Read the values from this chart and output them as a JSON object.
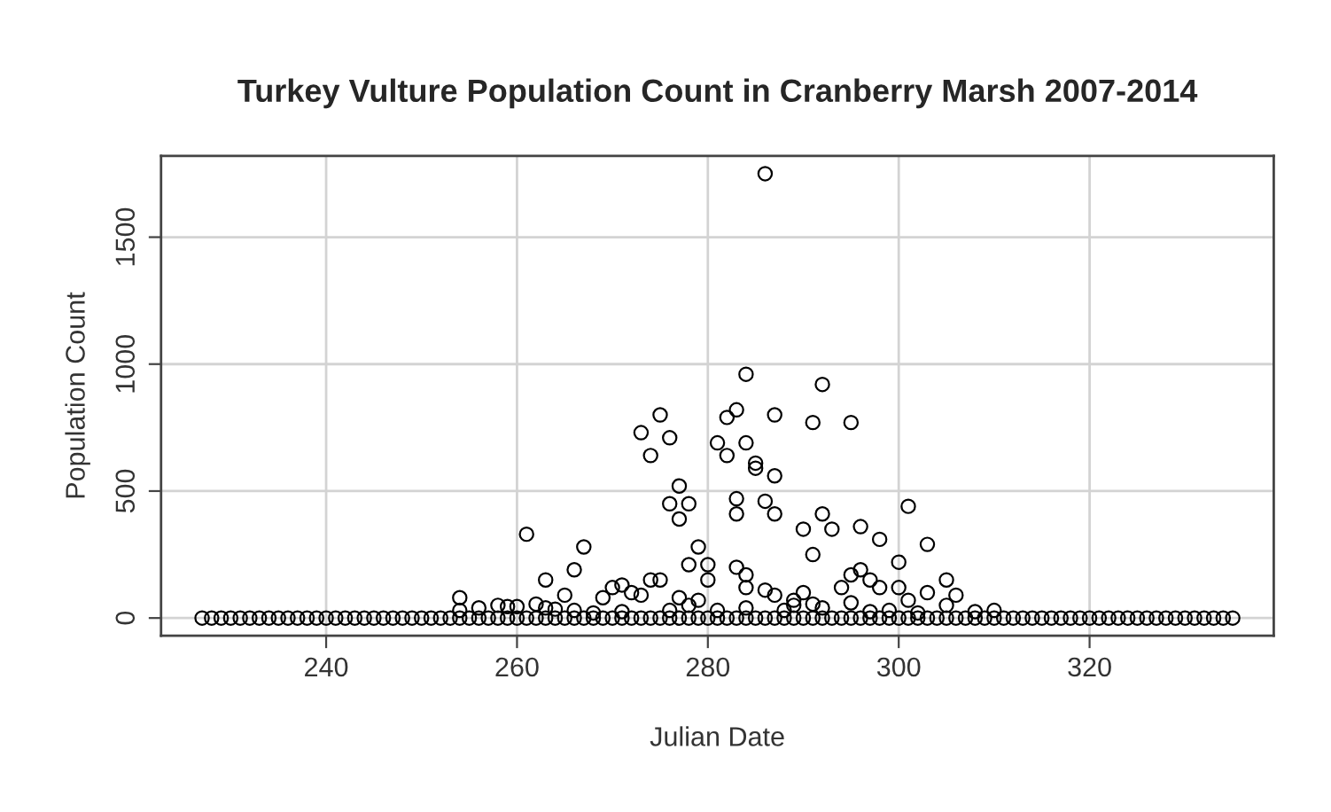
{
  "chart_data": {
    "type": "scatter",
    "title": "Turkey Vulture Population Count in Cranberry Marsh 2007-2014",
    "xlabel": "Julian Date",
    "ylabel": "Population Count",
    "xlim": [
      222.7,
      339.3
    ],
    "xticks": [
      240,
      260,
      280,
      300,
      320
    ],
    "ylim": [
      -70,
      1820
    ],
    "yticks": [
      0,
      500,
      1000,
      1500
    ],
    "grid": true,
    "marker": "circle",
    "series": [
      {
        "color": "#000000",
        "x": [
          227,
          228,
          229,
          230,
          231,
          232,
          233,
          234,
          235,
          236,
          237,
          238,
          239,
          240,
          241,
          242,
          243,
          244,
          245,
          246,
          247,
          248,
          249,
          250,
          251,
          252,
          253,
          254,
          255,
          256,
          257,
          258,
          259,
          260,
          261,
          262,
          263,
          264,
          265,
          266,
          267,
          268,
          269,
          270,
          271,
          272,
          273,
          274,
          275,
          276,
          277,
          278,
          279,
          280,
          281,
          282,
          283,
          284,
          285,
          286,
          287,
          288,
          289,
          290,
          291,
          292,
          293,
          294,
          295,
          296,
          297,
          298,
          299,
          300,
          301,
          302,
          303,
          304,
          305,
          306,
          307,
          308,
          309,
          310,
          311,
          312,
          313,
          314,
          315,
          316,
          317,
          318,
          319,
          320,
          321,
          322,
          323,
          324,
          325,
          326,
          327,
          328,
          329,
          330,
          331,
          332,
          333,
          334,
          335,
          286,
          284,
          292,
          273,
          275,
          276,
          274,
          282,
          283,
          287,
          291,
          295,
          281,
          282,
          284,
          285,
          285,
          287,
          277,
          276,
          278,
          277,
          283,
          283,
          286,
          287,
          292,
          290,
          293,
          296,
          298,
          301,
          303,
          291,
          261,
          267,
          263,
          266,
          265,
          279,
          278,
          280,
          280,
          283,
          284,
          284,
          274,
          275,
          272,
          271,
          270,
          269,
          273,
          300,
          296,
          295,
          297,
          294,
          298,
          300,
          305,
          306,
          303,
          301,
          305,
          286,
          287,
          290,
          289,
          295,
          254,
          277,
          278,
          279,
          254,
          256,
          258,
          259,
          260,
          262,
          263,
          264,
          266,
          268,
          271,
          276,
          281,
          284,
          288,
          289,
          291,
          292,
          297,
          299,
          302,
          308,
          310
        ],
        "values": [
          0,
          0,
          0,
          0,
          0,
          0,
          0,
          0,
          0,
          0,
          0,
          0,
          0,
          0,
          0,
          0,
          0,
          0,
          0,
          0,
          0,
          0,
          0,
          0,
          0,
          0,
          0,
          0,
          0,
          0,
          0,
          0,
          0,
          0,
          0,
          0,
          0,
          0,
          0,
          0,
          0,
          0,
          0,
          0,
          0,
          0,
          0,
          0,
          0,
          0,
          0,
          0,
          0,
          0,
          0,
          0,
          0,
          0,
          0,
          0,
          0,
          0,
          0,
          0,
          0,
          0,
          0,
          0,
          0,
          0,
          0,
          0,
          0,
          0,
          0,
          0,
          0,
          0,
          0,
          0,
          0,
          0,
          0,
          0,
          0,
          0,
          0,
          0,
          0,
          0,
          0,
          0,
          0,
          0,
          0,
          0,
          0,
          0,
          0,
          0,
          0,
          0,
          0,
          0,
          0,
          0,
          0,
          0,
          0,
          1750,
          960,
          920,
          730,
          800,
          710,
          640,
          790,
          820,
          800,
          770,
          770,
          690,
          640,
          690,
          610,
          590,
          560,
          520,
          450,
          450,
          390,
          470,
          410,
          460,
          410,
          410,
          350,
          350,
          360,
          310,
          440,
          290,
          250,
          330,
          280,
          150,
          190,
          90,
          280,
          210,
          210,
          150,
          200,
          170,
          120,
          150,
          150,
          100,
          130,
          120,
          80,
          90,
          220,
          190,
          170,
          150,
          120,
          120,
          120,
          150,
          90,
          100,
          70,
          50,
          110,
          90,
          100,
          70,
          60,
          80,
          80,
          50,
          70,
          30,
          40,
          50,
          45,
          45,
          55,
          40,
          35,
          30,
          20,
          25,
          30,
          30,
          40,
          30,
          50,
          55,
          40,
          25,
          30,
          20,
          25,
          30
        ]
      }
    ]
  }
}
